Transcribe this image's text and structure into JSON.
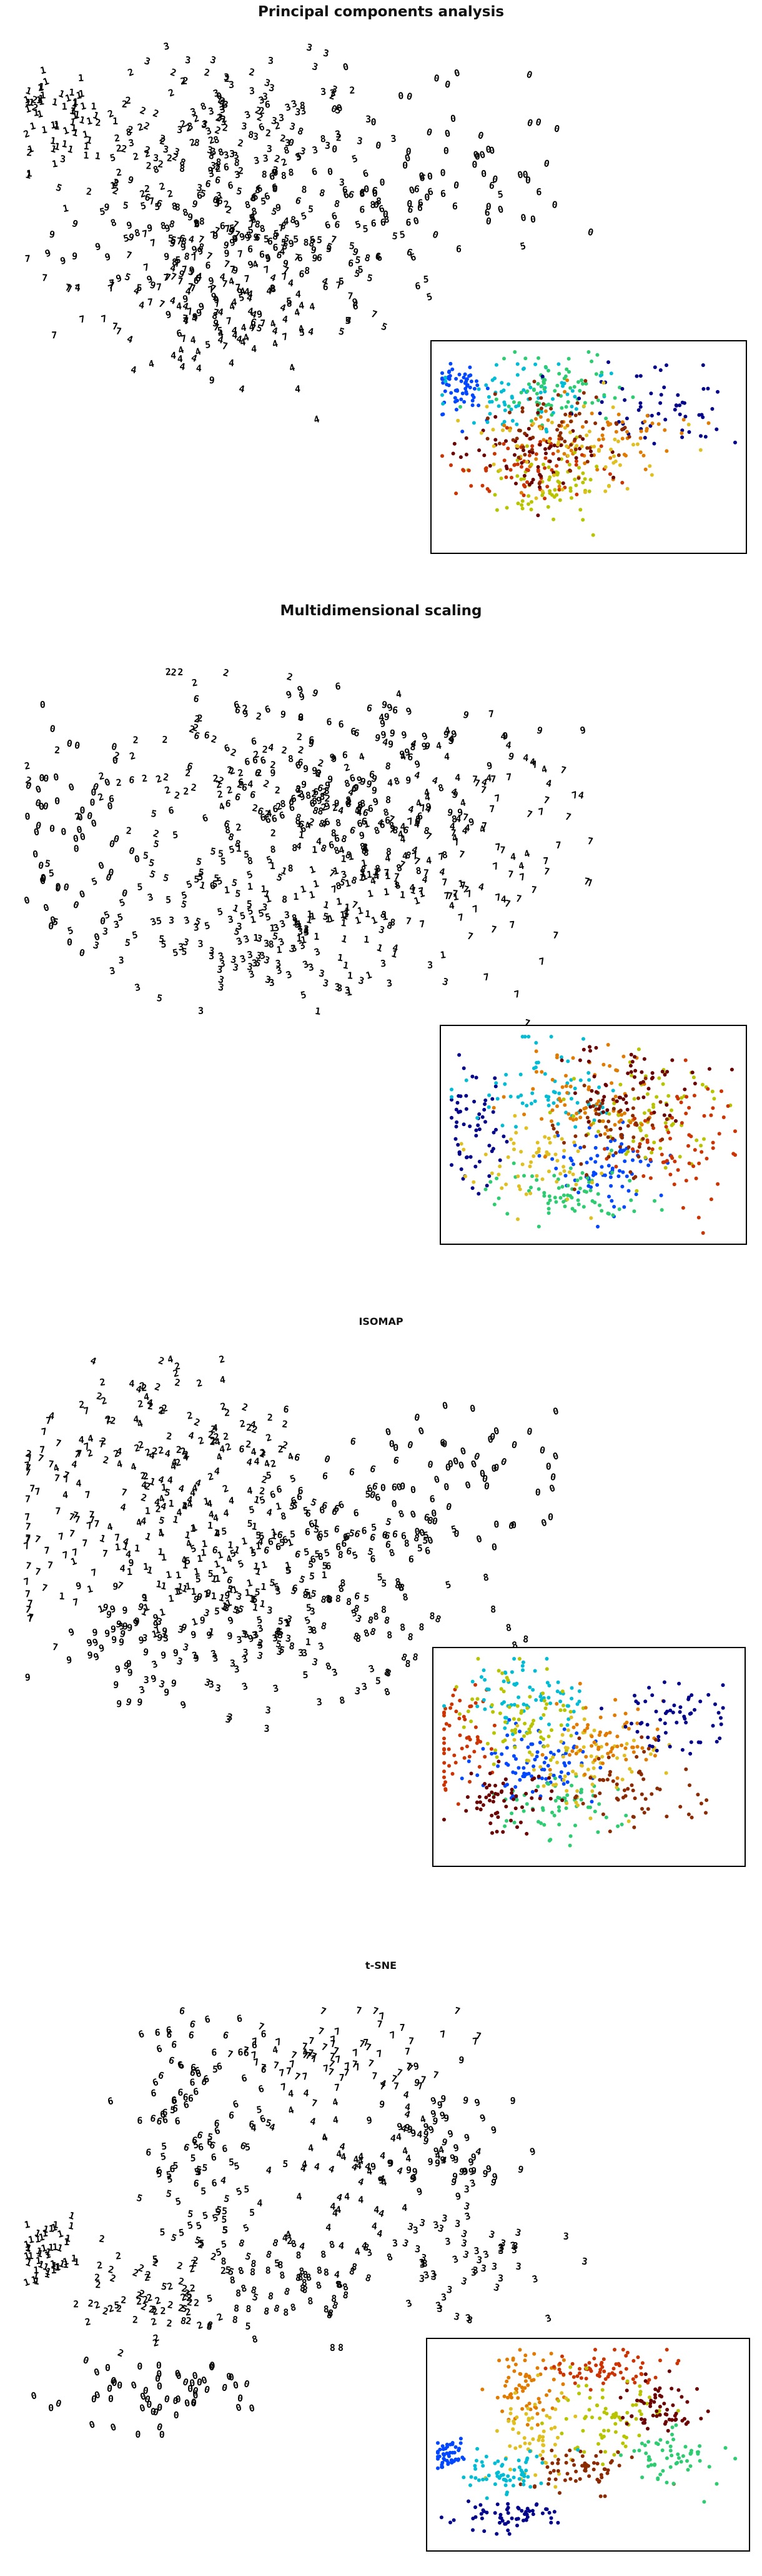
{
  "panels": [
    {
      "title": "Principal components analysis",
      "method": "pca"
    },
    {
      "title": "Multidimensional scaling",
      "method": "mds"
    },
    {
      "title": "ISOMAP",
      "method": "isomap"
    },
    {
      "title": "t-SNE",
      "method": "tsne"
    }
  ],
  "digit_colors": {
    "0": "#00008b",
    "1": "#0047ff",
    "2": "#00bcd4",
    "3": "#2ecc71",
    "4": "#b8c400",
    "5": "#e0c020",
    "6": "#e07b00",
    "7": "#cc3300",
    "8": "#8b2a00",
    "9": "#6b0000"
  },
  "chart_data": [
    {
      "type": "scatter",
      "title": "Principal components analysis",
      "series": [
        {
          "values": []
        }
      ],
      "grid": false,
      "legend": "none"
    },
    {
      "type": "scatter",
      "title": "Multidimensional scaling",
      "series": [
        {
          "values": []
        }
      ],
      "grid": false,
      "legend": "none"
    },
    {
      "type": "scatter",
      "title": "ISOMAP",
      "series": [
        {
          "values": []
        }
      ],
      "grid": false,
      "legend": "none"
    },
    {
      "type": "scatter",
      "title": "t-SNE",
      "series": [
        {
          "values": []
        }
      ],
      "grid": false,
      "legend": "none"
    }
  ]
}
